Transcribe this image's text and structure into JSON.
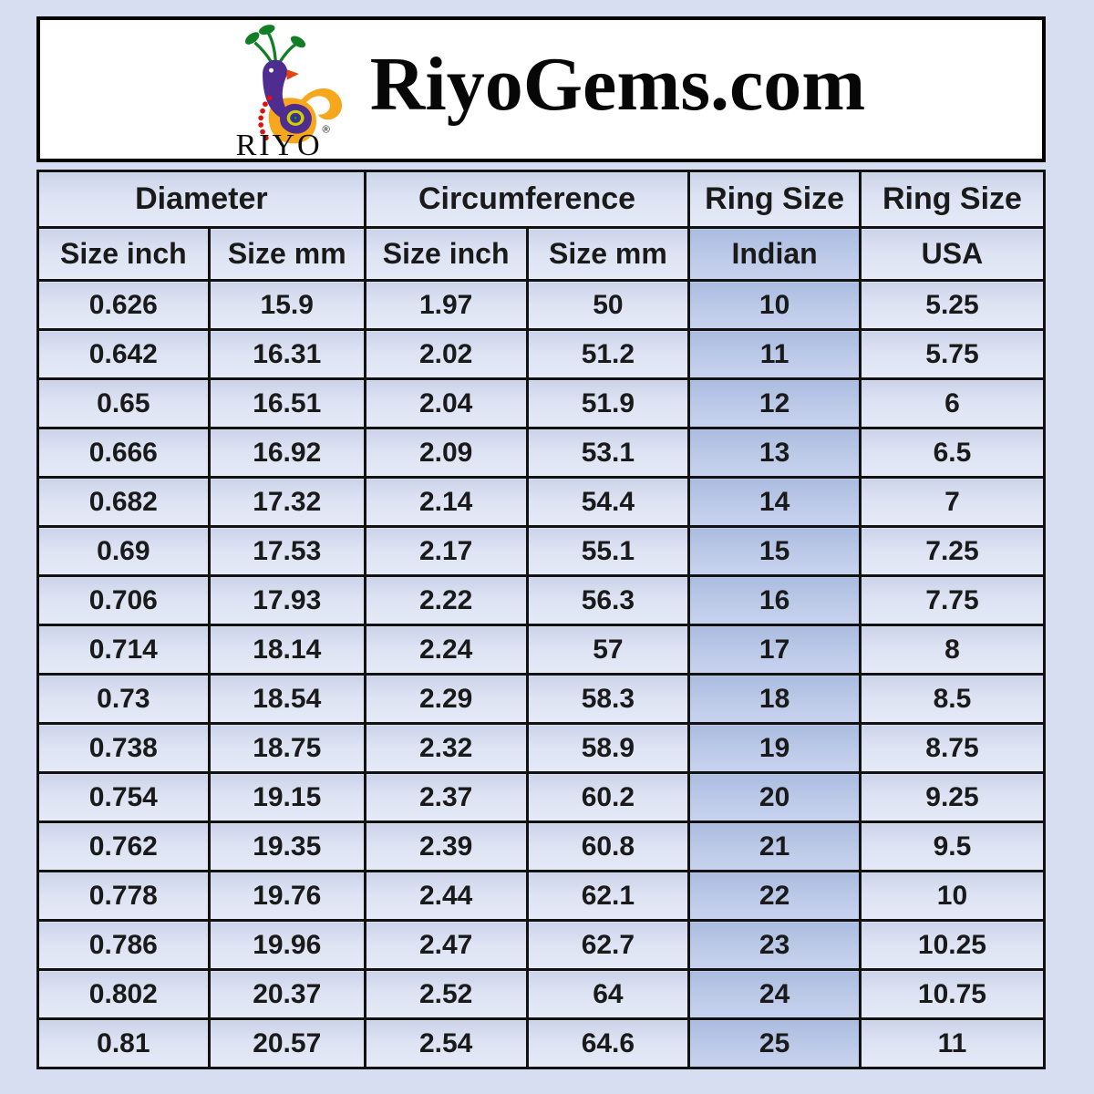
{
  "page": {
    "background": "#d8def1"
  },
  "header": {
    "title": "RiyoGems.com",
    "logo_text": "RIYO",
    "registered_mark": "®"
  },
  "chart_data": {
    "type": "table",
    "groups": [
      {
        "label": "Diameter",
        "span": 2
      },
      {
        "label": "Circumference",
        "span": 2
      },
      {
        "label": "Ring Size",
        "span": 1
      },
      {
        "label": "Ring Size",
        "span": 1
      }
    ],
    "columns": [
      "Size inch",
      "Size mm",
      "Size inch",
      "Size mm",
      "Indian",
      "USA"
    ],
    "highlight_column": "Indian",
    "highlight_column_index": 4,
    "rows": [
      [
        "0.626",
        "15.9",
        "1.97",
        "50",
        "10",
        "5.25"
      ],
      [
        "0.642",
        "16.31",
        "2.02",
        "51.2",
        "11",
        "5.75"
      ],
      [
        "0.65",
        "16.51",
        "2.04",
        "51.9",
        "12",
        "6"
      ],
      [
        "0.666",
        "16.92",
        "2.09",
        "53.1",
        "13",
        "6.5"
      ],
      [
        "0.682",
        "17.32",
        "2.14",
        "54.4",
        "14",
        "7"
      ],
      [
        "0.69",
        "17.53",
        "2.17",
        "55.1",
        "15",
        "7.25"
      ],
      [
        "0.706",
        "17.93",
        "2.22",
        "56.3",
        "16",
        "7.75"
      ],
      [
        "0.714",
        "18.14",
        "2.24",
        "57",
        "17",
        "8"
      ],
      [
        "0.73",
        "18.54",
        "2.29",
        "58.3",
        "18",
        "8.5"
      ],
      [
        "0.738",
        "18.75",
        "2.32",
        "58.9",
        "19",
        "8.75"
      ],
      [
        "0.754",
        "19.15",
        "2.37",
        "60.2",
        "20",
        "9.25"
      ],
      [
        "0.762",
        "19.35",
        "2.39",
        "60.8",
        "21",
        "9.5"
      ],
      [
        "0.778",
        "19.76",
        "2.44",
        "62.1",
        "22",
        "10"
      ],
      [
        "0.786",
        "19.96",
        "2.47",
        "62.7",
        "23",
        "10.25"
      ],
      [
        "0.802",
        "20.37",
        "2.52",
        "64",
        "24",
        "10.75"
      ],
      [
        "0.81",
        "20.57",
        "2.54",
        "64.6",
        "25",
        "11"
      ]
    ],
    "colors": {
      "cell_background": "#dde3f3",
      "highlight_background": "#bac8e7",
      "border": "#121212",
      "page_background": "#d8def1",
      "logo_purple": "#4f2c90",
      "logo_orange": "#f7a71c",
      "logo_green": "#127f27",
      "logo_red": "#e01111",
      "logo_beak": "#e8430b"
    }
  }
}
